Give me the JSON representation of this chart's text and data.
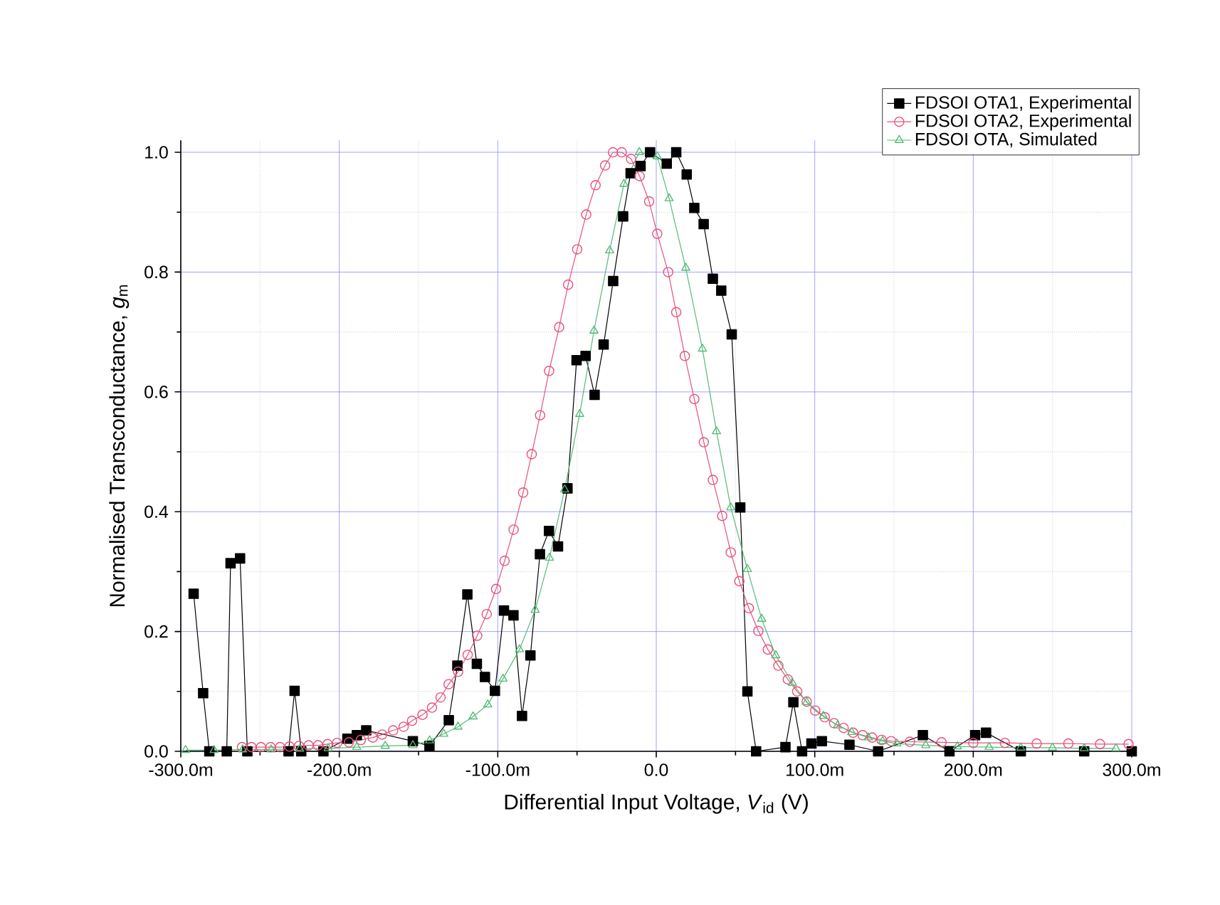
{
  "chart_data": {
    "type": "line",
    "xlabel": "Differential Input Voltage, *V*$_{id}$ (V)",
    "ylabel": "Normalised Transconductance, *g*$_{m}$",
    "xlim": [
      -300,
      300
    ],
    "ylim": [
      0,
      1.02
    ],
    "xticks": [
      {
        "value": -300,
        "label": "-300.0m"
      },
      {
        "value": -200,
        "label": "-200.0m"
      },
      {
        "value": -100,
        "label": "-100.0m"
      },
      {
        "value": 0,
        "label": "0.0"
      },
      {
        "value": 100,
        "label": "100.0m"
      },
      {
        "value": 200,
        "label": "200.0m"
      },
      {
        "value": 300,
        "label": "300.0m"
      }
    ],
    "yticks": [
      {
        "value": 0,
        "label": "0.0"
      },
      {
        "value": 0.2,
        "label": "0.2"
      },
      {
        "value": 0.4,
        "label": "0.4"
      },
      {
        "value": 0.6,
        "label": "0.6"
      },
      {
        "value": 0.8,
        "label": "0.8"
      },
      {
        "value": 1.0,
        "label": "1.0"
      }
    ],
    "grid": true,
    "legend": "top right",
    "line_style": "solid",
    "series": [
      {
        "name": "FDSOI OTA1, Experimental",
        "color": "#000000",
        "marker": "square",
        "x": [
          -291.9,
          -285.9,
          -282,
          -271,
          -268.6,
          -262.6,
          -258,
          -232,
          -228.2,
          -224,
          -210,
          -194.9,
          -188.9,
          -183,
          -153.6,
          -143.1,
          -130.9,
          -125.5,
          -119.2,
          -113.2,
          -108.1,
          -101.8,
          -96.1,
          -90.1,
          -84.7,
          -79.4,
          -73.4,
          -67.7,
          -62,
          -56,
          -50.3,
          -44.6,
          -38.9,
          -33.2,
          -27.2,
          -20.9,
          -16.2,
          -9.9,
          -3.9,
          6.6,
          12.6,
          19.2,
          24,
          29.9,
          35.7,
          41,
          47.6,
          53,
          57.5,
          63,
          81.5,
          86.5,
          92,
          97.9,
          104.5,
          121.9,
          140,
          168.2,
          185,
          201.2,
          208.1,
          230,
          270,
          300
        ],
        "values": [
          0.263,
          0.097,
          0,
          0,
          0.314,
          0.322,
          0,
          0,
          0.101,
          0,
          0,
          0.021,
          0.027,
          0.035,
          0.017,
          0.009,
          0.052,
          0.143,
          0.262,
          0.146,
          0.124,
          0.101,
          0.235,
          0.227,
          0.059,
          0.16,
          0.329,
          0.368,
          0.342,
          0.439,
          0.653,
          0.66,
          0.595,
          0.679,
          0.785,
          0.893,
          0.965,
          0.977,
          1.0,
          0.981,
          1.0,
          0.963,
          0.907,
          0.88,
          0.789,
          0.769,
          0.696,
          0.407,
          0.1,
          0,
          0.007,
          0.082,
          0,
          0.013,
          0.017,
          0.011,
          0,
          0.027,
          0,
          0.027,
          0.031,
          0,
          0,
          0
        ]
      },
      {
        "name": "FDSOI OTA2, Experimental",
        "color": "#e8507a",
        "marker": "circle",
        "x": [
          -261.4,
          -255.4,
          -249.4,
          -243.4,
          -237.4,
          -231.4,
          -225.4,
          -219.4,
          -213.4,
          -207.4,
          -201.4,
          -193.9,
          -186.4,
          -178.9,
          -172.9,
          -166,
          -159.4,
          -154.1,
          -147.5,
          -141.5,
          -136.1,
          -131,
          -125,
          -119,
          -113,
          -107,
          -101.1,
          -95.7,
          -90,
          -84,
          -78.6,
          -73.3,
          -67.6,
          -61.3,
          -55.6,
          -49.9,
          -44.2,
          -38.3,
          -32.3,
          -27.3,
          -21.8,
          -15.9,
          -10.5,
          -4.5,
          0.6,
          7.5,
          12.6,
          18,
          24,
          30,
          35.7,
          41.6,
          47,
          52.4,
          58.4,
          64.4,
          70.4,
          77,
          83,
          88.9,
          94.9,
          100.3,
          106.3,
          112.2,
          118.2,
          124.2,
          130.2,
          136.2,
          142.2,
          148.2,
          160,
          180,
          200,
          220,
          240,
          260,
          280,
          298
        ],
        "values": [
          0.007,
          0.007,
          0.007,
          0.007,
          0.007,
          0.008,
          0.009,
          0.01,
          0.01,
          0.012,
          0.014,
          0.015,
          0.019,
          0.023,
          0.028,
          0.035,
          0.041,
          0.051,
          0.061,
          0.073,
          0.09,
          0.112,
          0.133,
          0.161,
          0.193,
          0.229,
          0.271,
          0.318,
          0.37,
          0.432,
          0.496,
          0.561,
          0.635,
          0.708,
          0.779,
          0.838,
          0.896,
          0.945,
          0.978,
          1.0,
          1.0,
          0.989,
          0.96,
          0.918,
          0.864,
          0.8,
          0.733,
          0.66,
          0.588,
          0.516,
          0.453,
          0.393,
          0.332,
          0.284,
          0.239,
          0.201,
          0.17,
          0.143,
          0.12,
          0.1,
          0.083,
          0.068,
          0.057,
          0.047,
          0.039,
          0.031,
          0.027,
          0.023,
          0.019,
          0.017,
          0.016,
          0.015,
          0.014,
          0.014,
          0.013,
          0.013,
          0.012,
          0.012
        ]
      },
      {
        "name": "FDSOI OTA, Simulated",
        "color": "#55bb77",
        "marker": "triangle",
        "x": [
          -297,
          -279,
          -261,
          -243,
          -225,
          -207,
          -189,
          -171,
          -153.6,
          -143,
          -134.1,
          -125.1,
          -115.6,
          -106.3,
          -96.7,
          -86.3,
          -76.4,
          -67.4,
          -57.8,
          -48.3,
          -39.3,
          -29.4,
          -20.4,
          -10.7,
          0.6,
          8.1,
          18.6,
          29.1,
          38,
          47,
          57.5,
          66.5,
          75.4,
          85.9,
          94.9,
          105.4,
          114.4,
          123.3,
          133.8,
          142.8,
          151.8,
          170,
          190,
          210,
          230,
          250,
          270,
          290
        ],
        "values": [
          0.002,
          0.002,
          0.003,
          0.003,
          0.004,
          0.005,
          0.007,
          0.009,
          0.01,
          0.018,
          0.029,
          0.041,
          0.058,
          0.078,
          0.121,
          0.17,
          0.236,
          0.323,
          0.437,
          0.563,
          0.702,
          0.836,
          0.947,
          1.0,
          0.993,
          0.923,
          0.807,
          0.672,
          0.534,
          0.407,
          0.304,
          0.221,
          0.16,
          0.114,
          0.082,
          0.059,
          0.043,
          0.032,
          0.023,
          0.017,
          0.013,
          0.01,
          0.008,
          0.007,
          0.006,
          0.006,
          0.005,
          0.005
        ]
      }
    ]
  }
}
